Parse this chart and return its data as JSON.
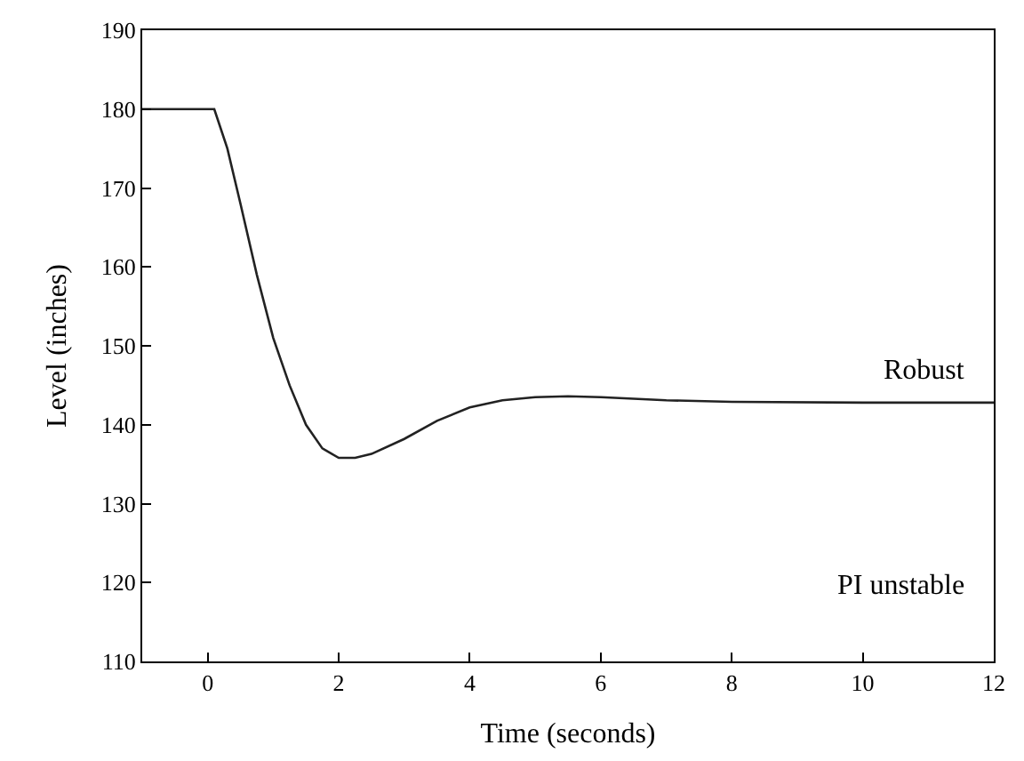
{
  "chart_data": {
    "type": "line",
    "xlabel": "Time (seconds)",
    "ylabel": "Level (inches)",
    "x": [
      -1,
      0.1,
      0.3,
      0.5,
      0.75,
      1,
      1.25,
      1.5,
      1.75,
      2,
      2.25,
      2.5,
      3,
      3.5,
      4,
      4.5,
      5,
      5.5,
      6,
      7,
      8,
      10,
      12
    ],
    "series": [
      {
        "color": "#222222",
        "values": [
          180,
          180,
          175,
          168,
          159,
          151,
          145,
          140,
          137,
          135.8,
          135.8,
          136.3,
          138.2,
          140.5,
          142.2,
          143.1,
          143.5,
          143.6,
          143.5,
          143.1,
          142.9,
          142.8,
          142.8
        ]
      }
    ],
    "xlim": [
      -1,
      12
    ],
    "xticks": [
      0,
      2,
      4,
      6,
      8,
      10,
      12
    ],
    "ylim": [
      110,
      190
    ],
    "yticks": [
      110,
      120,
      130,
      140,
      150,
      160,
      170,
      180,
      190
    ],
    "annotations": [
      "Robust",
      "PI unstable"
    ],
    "marker": "none",
    "line_style": "solid"
  }
}
